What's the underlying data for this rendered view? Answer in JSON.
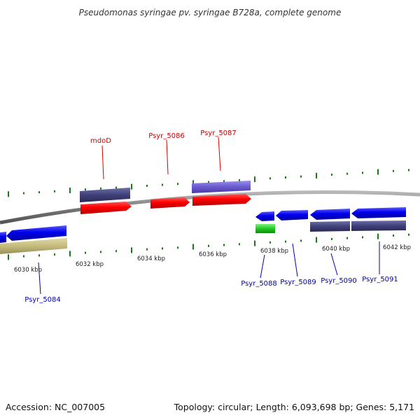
{
  "title": "Pseudomonas syringae pv. syringae B728a, complete genome",
  "footer": {
    "accession": "Accession: NC_007005",
    "topology": "Topology: circular; Length: 6,093,698 bp; Genes: 5,171"
  },
  "colors": {
    "backbone": "#808080",
    "tick": "#1a7a1a",
    "forward_label": "#cc0000",
    "reverse_label": "#0000aa"
  },
  "scale_labels": [
    "6030 kbp",
    "6032 kbp",
    "6034 kbp",
    "6036 kbp",
    "6038 kbp",
    "6040 kbp",
    "6042 kbp"
  ],
  "genes": [
    {
      "name": "mdoD",
      "strand": "forward",
      "color": "red"
    },
    {
      "name": "Psyr_5086",
      "strand": "forward",
      "color": "red"
    },
    {
      "name": "Psyr_5087",
      "strand": "forward",
      "color": "red"
    },
    {
      "name": "Psyr_5084",
      "strand": "reverse",
      "color": "blue"
    },
    {
      "name": "Psyr_5088",
      "strand": "reverse",
      "color": "blue"
    },
    {
      "name": "Psyr_5089",
      "strand": "reverse",
      "color": "blue"
    },
    {
      "name": "Psyr_5090",
      "strand": "reverse",
      "color": "blue"
    },
    {
      "name": "Psyr_5091",
      "strand": "reverse",
      "color": "blue"
    }
  ]
}
